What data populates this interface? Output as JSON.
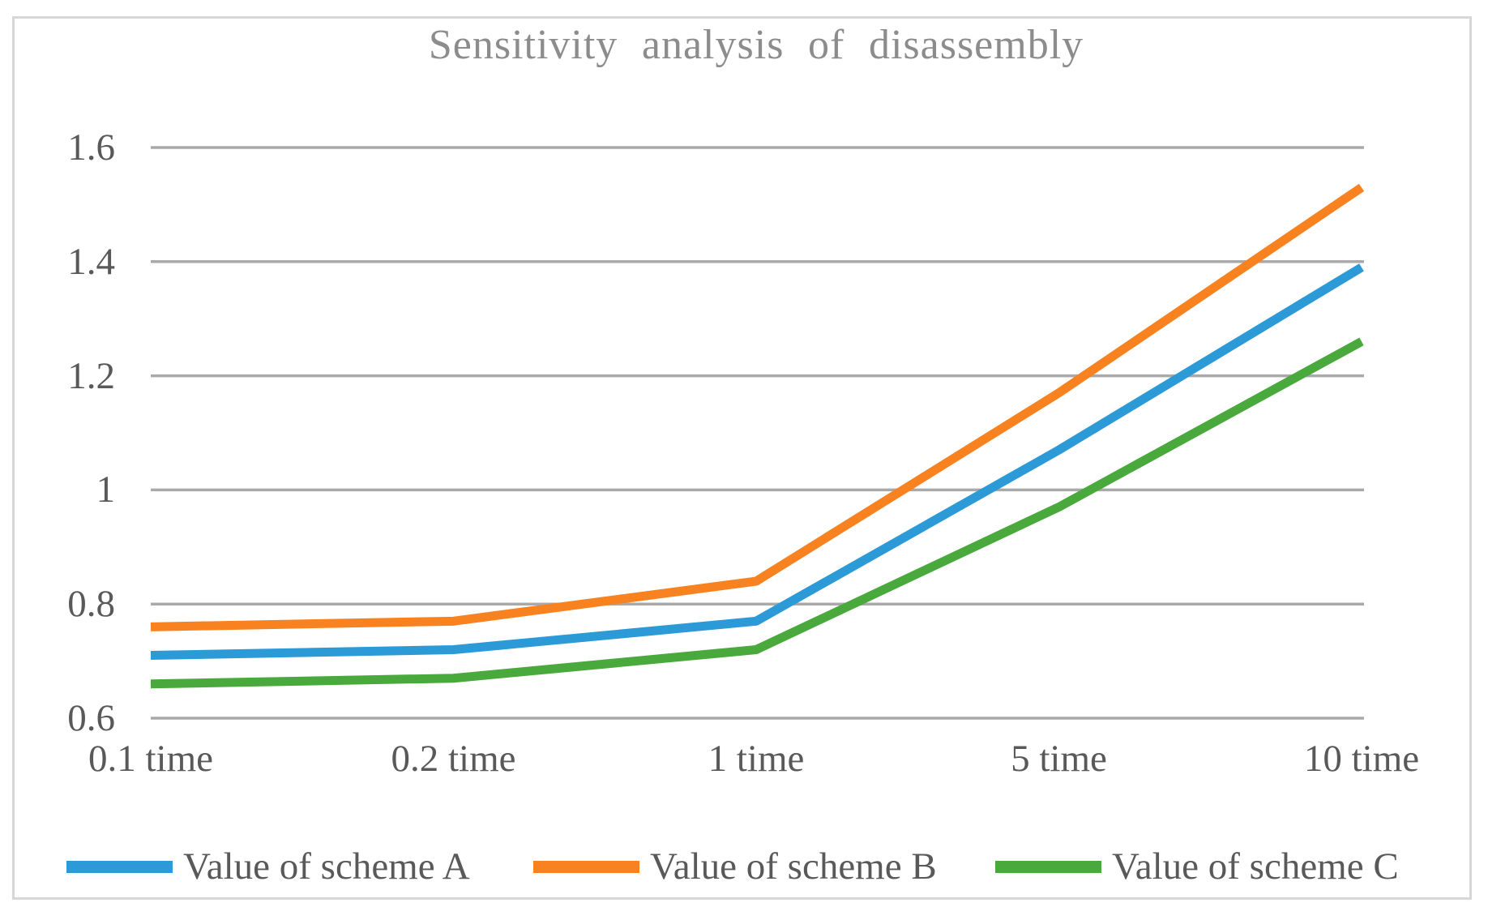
{
  "title": "Sensitivity analysis of disassembly",
  "colors": {
    "title_text": "#8c8c8c",
    "axis_text": "#595959",
    "gridline": "#a9a9a9",
    "frame_border": "#d7d7d7",
    "background": "#ffffff",
    "scheme_a_blue": "#2b9ad6",
    "scheme_b_orange": "#f8821f",
    "scheme_c_green": "#4aa93c"
  },
  "chart_data": {
    "type": "line",
    "title": "Sensitivity analysis of disassembly",
    "categories": [
      "0.1 time",
      "0.2 time",
      "1 time",
      "5 time",
      "10 time"
    ],
    "series": [
      {
        "name": "Value of scheme A",
        "color": "#2b9ad6",
        "values": [
          0.71,
          0.72,
          0.77,
          1.07,
          1.39
        ]
      },
      {
        "name": "Value of scheme B",
        "color": "#f8821f",
        "values": [
          0.76,
          0.77,
          0.84,
          1.17,
          1.53
        ]
      },
      {
        "name": "Value of scheme C",
        "color": "#4aa93c",
        "values": [
          0.66,
          0.67,
          0.72,
          0.97,
          1.26
        ]
      }
    ],
    "xlabel": "",
    "ylabel": "",
    "ylim": [
      0.6,
      1.6
    ],
    "yticks": [
      0.6,
      0.8,
      1,
      1.2,
      1.4,
      1.6
    ],
    "ytick_labels": [
      "0.6",
      "0.8",
      "1",
      "1.2",
      "1.4",
      "1.6"
    ],
    "grid": "horizontal",
    "legend_position": "bottom"
  }
}
